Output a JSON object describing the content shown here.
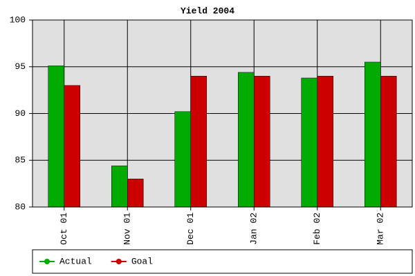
{
  "chart_data": {
    "type": "bar",
    "title": "Yield 2004",
    "categories": [
      "Oct 01",
      "Nov 01",
      "Dec 01",
      "Jan 02",
      "Feb 02",
      "Mar 02"
    ],
    "series": [
      {
        "name": "Actual",
        "color": "#00aa00",
        "values": [
          95.1,
          84.4,
          90.2,
          94.4,
          93.8,
          95.5
        ]
      },
      {
        "name": "Goal",
        "color": "#cc0000",
        "values": [
          93,
          83,
          94,
          94,
          94,
          94
        ]
      }
    ],
    "ylim": [
      80,
      100
    ],
    "yticks": [
      80,
      85,
      90,
      95,
      100
    ],
    "grid": true,
    "legend": "bottom"
  }
}
